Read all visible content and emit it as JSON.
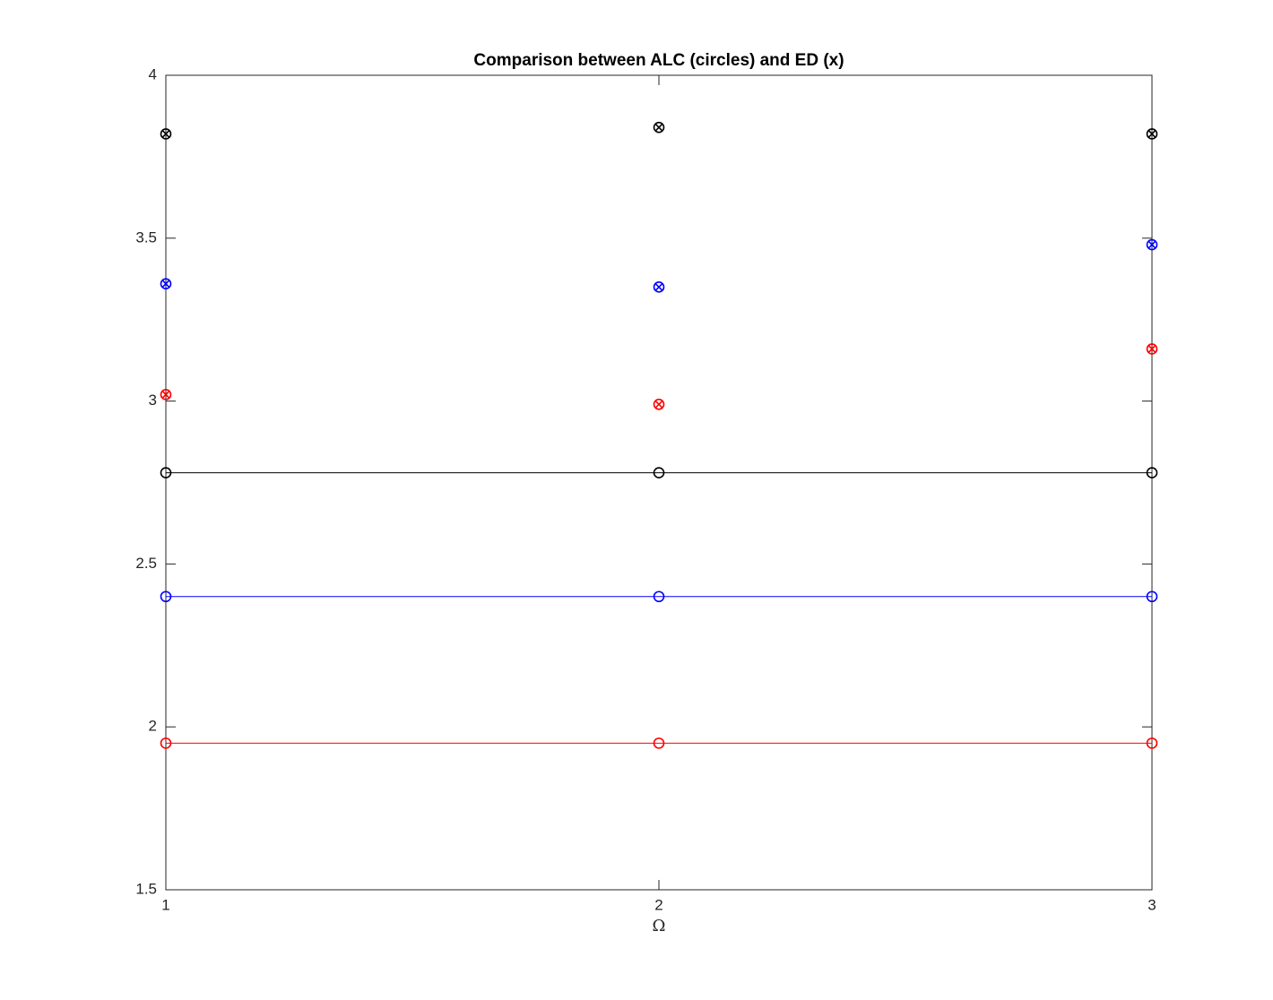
{
  "chart_data": {
    "type": "scatter",
    "title": "Comparison between ALC (circles) and ED (x)",
    "x_label": "Ω",
    "x": [
      1,
      2,
      3
    ],
    "series": [
      {
        "color": "#000000",
        "marker": "circle",
        "line": true,
        "values": [
          2.78,
          2.78,
          2.78
        ]
      },
      {
        "color": "#0000ff",
        "marker": "circle",
        "line": true,
        "values": [
          2.4,
          2.4,
          2.4
        ]
      },
      {
        "color": "#ff0000",
        "marker": "circle",
        "line": true,
        "values": [
          1.95,
          1.95,
          1.95
        ]
      },
      {
        "color": "#000000",
        "marker": "circle-x",
        "line": false,
        "values": [
          3.82,
          3.84,
          3.82
        ]
      },
      {
        "color": "#0000ff",
        "marker": "circle-x",
        "line": false,
        "values": [
          3.36,
          3.35,
          3.48
        ]
      },
      {
        "color": "#ff0000",
        "marker": "circle-x",
        "line": false,
        "values": [
          3.02,
          2.99,
          3.16
        ]
      }
    ],
    "xlim": [
      1,
      3
    ],
    "xticks": [
      1,
      2,
      3
    ],
    "ylim": [
      1.5,
      4
    ],
    "yticks": [
      1.5,
      2,
      2.5,
      3,
      3.5,
      4
    ],
    "grid": false,
    "box": true
  }
}
